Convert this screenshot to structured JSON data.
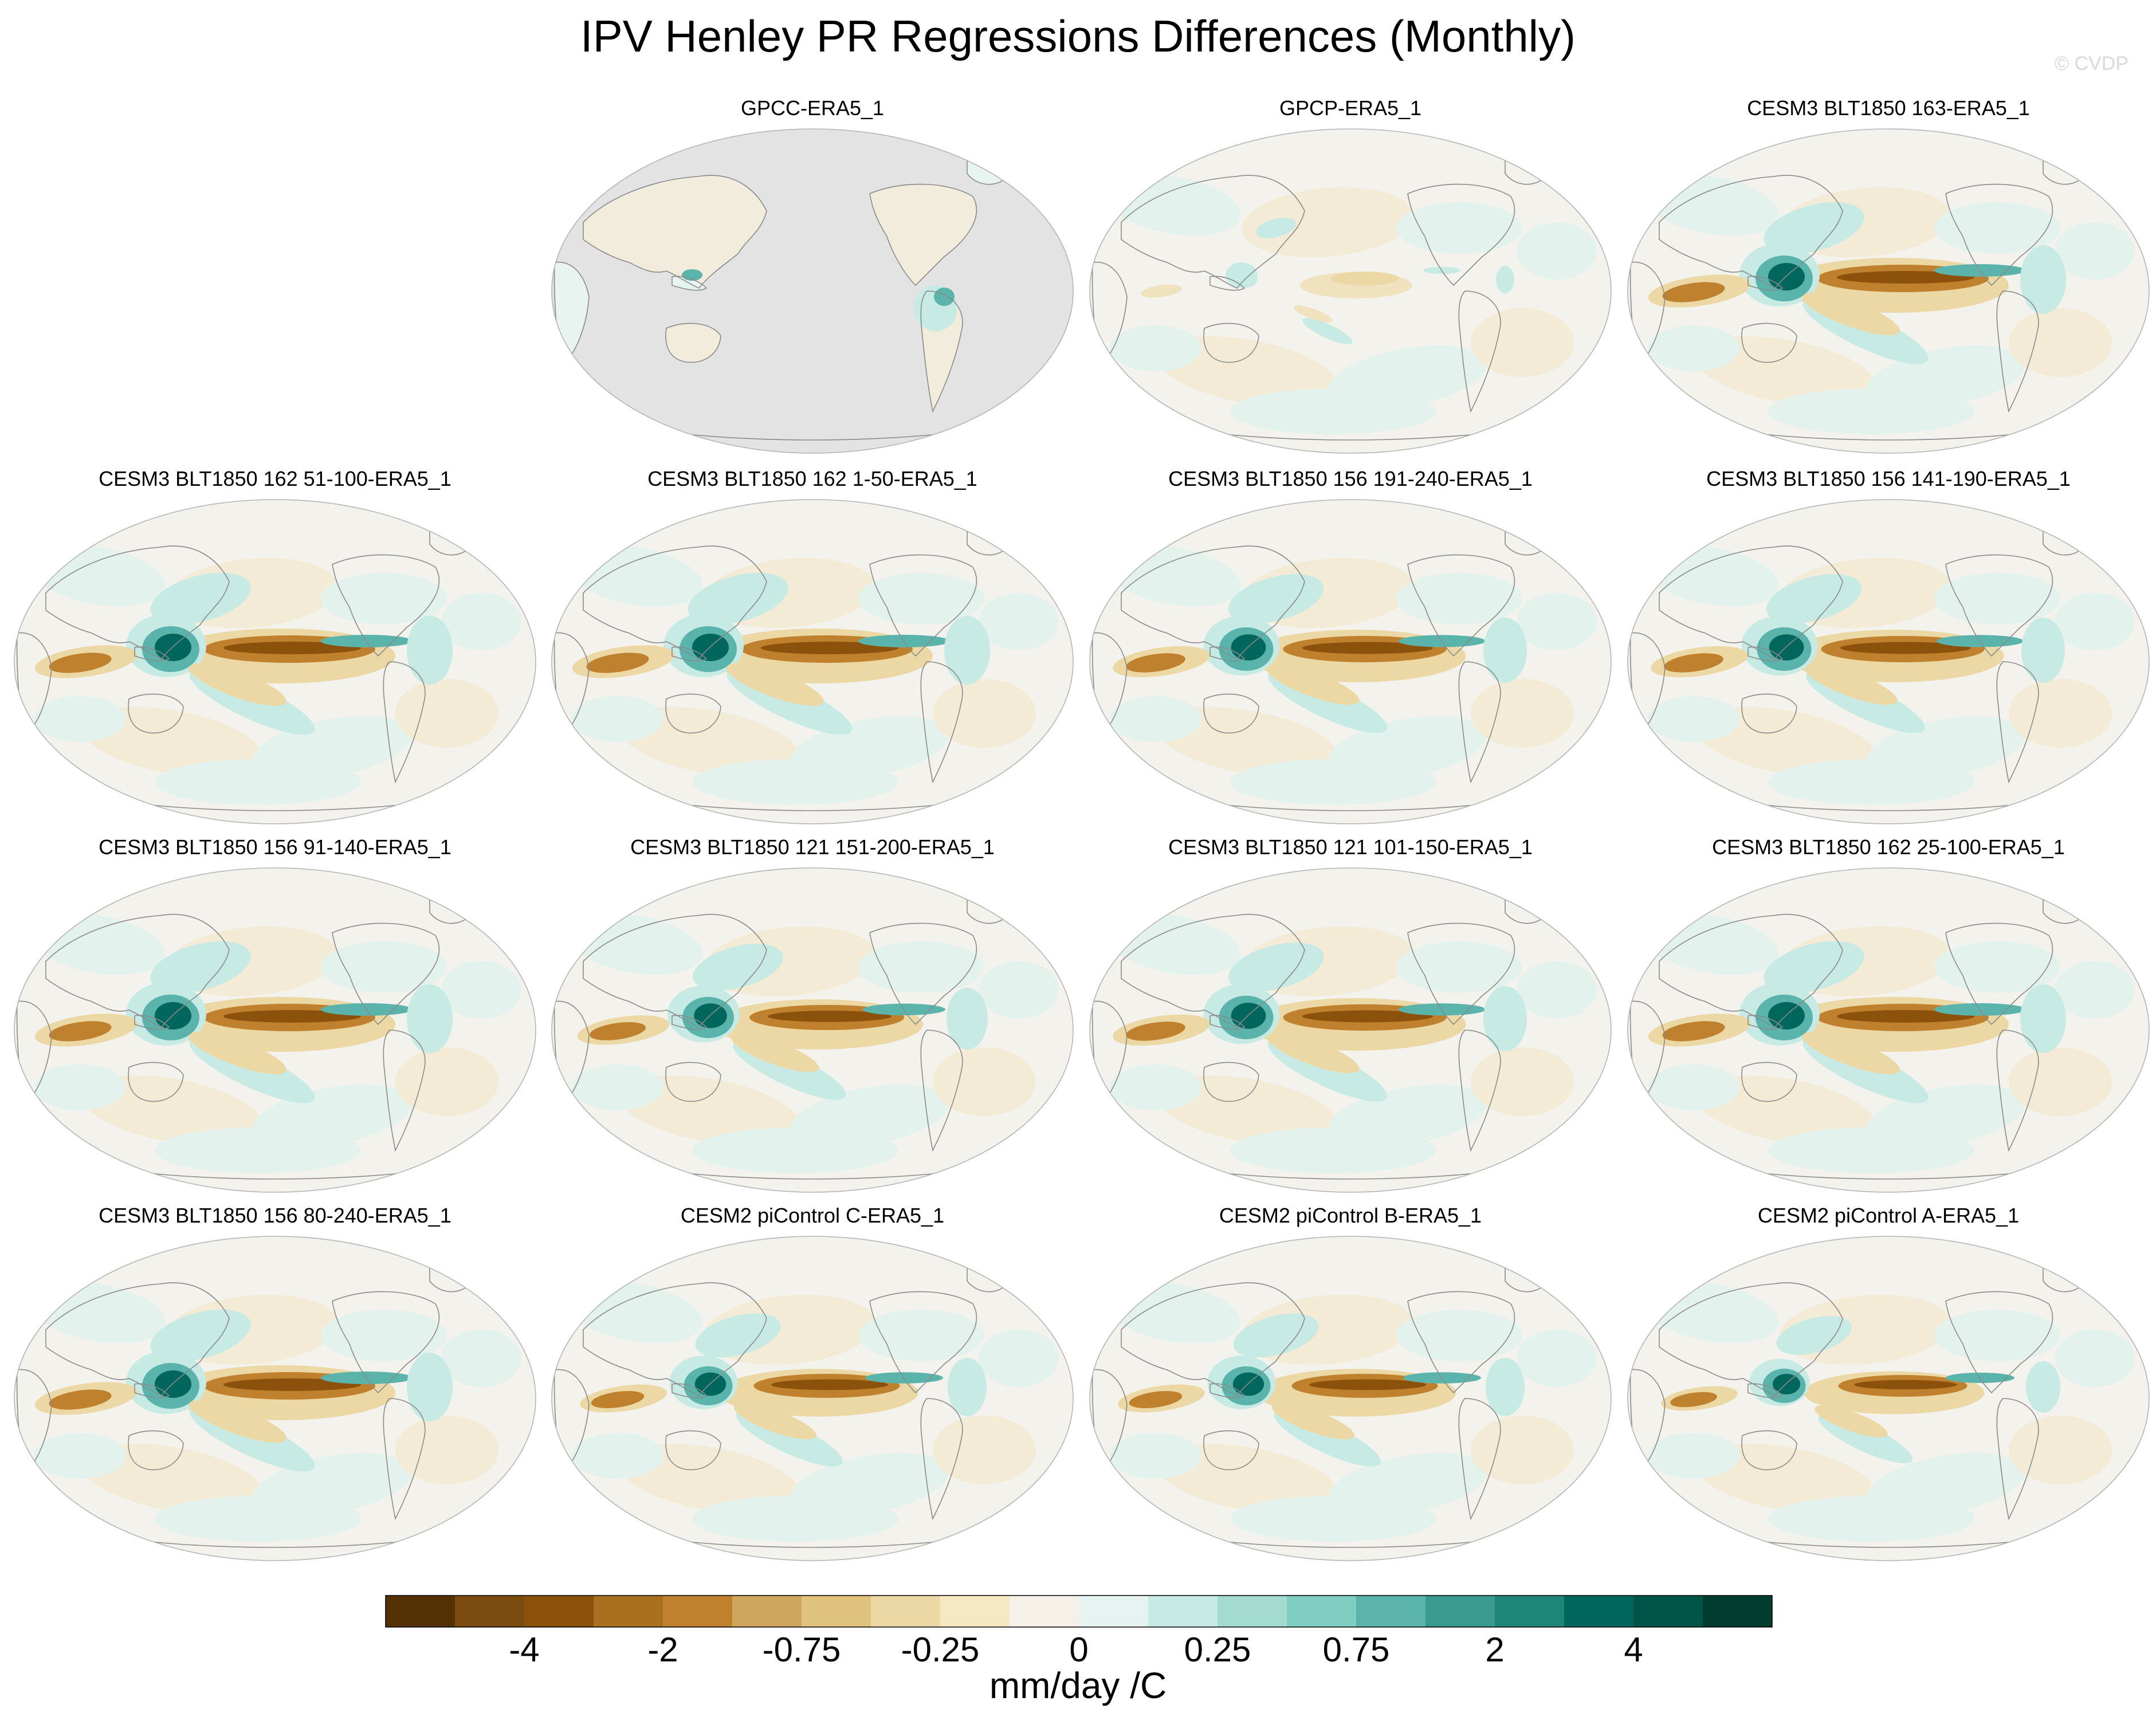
{
  "title": "IPV Henley PR Regressions Differences (Monthly)",
  "copyright": "© CVDP",
  "panels": [
    {
      "label": "GPCC-ERA5_1",
      "land_only": true,
      "strength": 0.15
    },
    {
      "label": "GPCP-ERA5_1",
      "land_only": false,
      "strength": 0.4
    },
    {
      "label": "CESM3 BLT1850 163-ERA5_1",
      "land_only": false,
      "strength": 1.0
    },
    {
      "label": "CESM3 BLT1850 162 51-100-ERA5_1",
      "land_only": false,
      "strength": 1.0
    },
    {
      "label": "CESM3 BLT1850 162 1-50-ERA5_1",
      "land_only": false,
      "strength": 1.0
    },
    {
      "label": "CESM3 BLT1850 156 191-240-ERA5_1",
      "land_only": false,
      "strength": 0.95
    },
    {
      "label": "CESM3 BLT1850 156 141-190-ERA5_1",
      "land_only": false,
      "strength": 0.95
    },
    {
      "label": "CESM3 BLT1850 156 91-140-ERA5_1",
      "land_only": false,
      "strength": 1.0
    },
    {
      "label": "CESM3 BLT1850 121 151-200-ERA5_1",
      "land_only": false,
      "strength": 0.9
    },
    {
      "label": "CESM3 BLT1850 121 101-150-ERA5_1",
      "land_only": false,
      "strength": 0.95
    },
    {
      "label": "CESM3 BLT1850 162 25-100-ERA5_1",
      "land_only": false,
      "strength": 1.0
    },
    {
      "label": "CESM3 BLT1850 156 80-240-ERA5_1",
      "land_only": false,
      "strength": 1.0
    },
    {
      "label": "CESM2 piControl C-ERA5_1",
      "land_only": false,
      "strength": 0.85
    },
    {
      "label": "CESM2 piControl B-ERA5_1",
      "land_only": false,
      "strength": 0.85
    },
    {
      "label": "CESM2 piControl A-ERA5_1",
      "land_only": false,
      "strength": 0.75
    }
  ],
  "colorbar": {
    "colors": [
      "#543005",
      "#7a4a0f",
      "#8c510a",
      "#a9701f",
      "#bf812d",
      "#d0a55d",
      "#dfc27d",
      "#ecd8a5",
      "#f6e8c3",
      "#f5f1e8",
      "#e6f3f0",
      "#c7eae5",
      "#a3dbd1",
      "#80cdc1",
      "#5ab4ac",
      "#3a9a8f",
      "#1f857a",
      "#01665e",
      "#015448",
      "#003c30"
    ],
    "labels": [
      "-4",
      "-2",
      "-0.75",
      "-0.25",
      "0",
      "0.25",
      "0.75",
      "2",
      "4"
    ],
    "units": "mm/day /C"
  }
}
